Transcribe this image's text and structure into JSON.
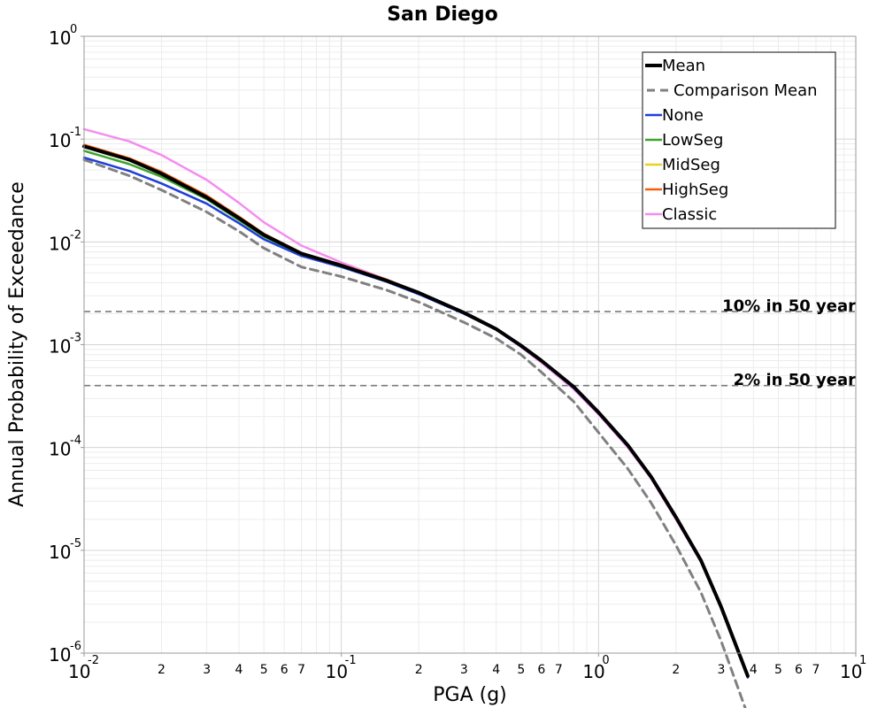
{
  "chart_data": {
    "type": "line",
    "title": "San Diego",
    "xlabel": "PGA (g)",
    "ylabel": "Annual Probability of Exceedance",
    "xscale": "log",
    "yscale": "log",
    "xlim": [
      0.01,
      10
    ],
    "ylim": [
      1e-06,
      1
    ],
    "grid": true,
    "legend_position": "top-right",
    "x_major_ticks": [
      {
        "base": "10",
        "exp": "-2"
      },
      {
        "base": "10",
        "exp": "-1"
      },
      {
        "base": "10",
        "exp": "0"
      },
      {
        "base": "10",
        "exp": "1"
      }
    ],
    "y_major_ticks": [
      {
        "base": "10",
        "exp": "0"
      },
      {
        "base": "10",
        "exp": "-1"
      },
      {
        "base": "10",
        "exp": "-2"
      },
      {
        "base": "10",
        "exp": "-3"
      },
      {
        "base": "10",
        "exp": "-4"
      },
      {
        "base": "10",
        "exp": "-5"
      },
      {
        "base": "10",
        "exp": "-6"
      }
    ],
    "x_minor_labels": [
      "2",
      "3",
      "4",
      "5",
      "6",
      "7"
    ],
    "reference_lines": [
      {
        "label": "10% in 50 year",
        "y": 0.0021
      },
      {
        "label": "2% in 50 year",
        "y": 0.0004
      }
    ],
    "x": [
      0.01,
      0.015,
      0.02,
      0.03,
      0.04,
      0.05,
      0.07,
      0.1,
      0.15,
      0.2,
      0.3,
      0.4,
      0.5,
      0.6,
      0.8,
      1.0,
      1.3,
      1.6,
      2.0,
      2.5,
      3.0,
      3.8
    ],
    "series": [
      {
        "name": "Mean",
        "color": "#000000",
        "style": "solid-thick",
        "values": [
          0.085,
          0.063,
          0.046,
          0.027,
          0.017,
          0.0117,
          0.0077,
          0.0059,
          0.0042,
          0.0032,
          0.00205,
          0.00142,
          0.00098,
          0.0007,
          0.00039,
          0.00022,
          0.000105,
          5.2e-05,
          2.1e-05,
          8e-06,
          2.8e-06,
          6e-07
        ]
      },
      {
        "name": "Comparison Mean",
        "color": "#808080",
        "style": "dashed",
        "values": [
          0.063,
          0.044,
          0.032,
          0.0195,
          0.0127,
          0.0087,
          0.0057,
          0.0046,
          0.0034,
          0.0026,
          0.00165,
          0.00115,
          0.0008,
          0.00054,
          0.00028,
          0.00014,
          6.2e-05,
          2.9e-05,
          1.12e-05,
          3.9e-06,
          1.3e-06,
          2.5e-07
        ]
      },
      {
        "name": "None",
        "color": "#1f3fd8",
        "style": "solid",
        "values": [
          0.066,
          0.049,
          0.037,
          0.0235,
          0.0152,
          0.0106,
          0.0073,
          0.0057,
          0.0041,
          0.0031,
          0.002,
          0.0014,
          0.00096,
          0.00069,
          0.00038,
          0.000215,
          0.000103,
          5.1e-05,
          2.05e-05,
          7.8e-06,
          2.7e-06,
          5.8e-07
        ]
      },
      {
        "name": "LowSeg",
        "color": "#3aa52a",
        "style": "solid",
        "values": [
          0.077,
          0.057,
          0.043,
          0.026,
          0.0163,
          0.0113,
          0.0076,
          0.0058,
          0.0042,
          0.0032,
          0.00203,
          0.00141,
          0.00097,
          0.0007,
          0.00039,
          0.00022,
          0.000104,
          5.2e-05,
          2.08e-05,
          7.9e-06,
          2.8e-06,
          6e-07
        ]
      },
      {
        "name": "MidSeg",
        "color": "#e8d21a",
        "style": "solid",
        "values": [
          0.084,
          0.062,
          0.046,
          0.027,
          0.017,
          0.0117,
          0.0077,
          0.0059,
          0.0042,
          0.0032,
          0.00205,
          0.00142,
          0.00098,
          0.0007,
          0.00039,
          0.00022,
          0.000105,
          5.2e-05,
          2.1e-05,
          8e-06,
          2.8e-06,
          6e-07
        ]
      },
      {
        "name": "HighSeg",
        "color": "#f06010",
        "style": "solid",
        "values": [
          0.088,
          0.065,
          0.048,
          0.0282,
          0.0176,
          0.012,
          0.0078,
          0.006,
          0.0043,
          0.0032,
          0.00206,
          0.00143,
          0.00099,
          0.00071,
          0.000395,
          0.000222,
          0.000106,
          5.3e-05,
          2.12e-05,
          8.1e-06,
          2.9e-06,
          6.2e-07
        ]
      },
      {
        "name": "Classic",
        "color": "#f58cf0",
        "style": "solid",
        "values": [
          0.125,
          0.095,
          0.07,
          0.04,
          0.024,
          0.0155,
          0.0092,
          0.0063,
          0.0043,
          0.0032,
          0.002,
          0.0014,
          0.00095,
          0.00067,
          0.00037,
          0.00021,
          0.0001,
          5e-05,
          2e-05,
          7.7e-06,
          2.7e-06,
          5.8e-07
        ]
      }
    ]
  }
}
